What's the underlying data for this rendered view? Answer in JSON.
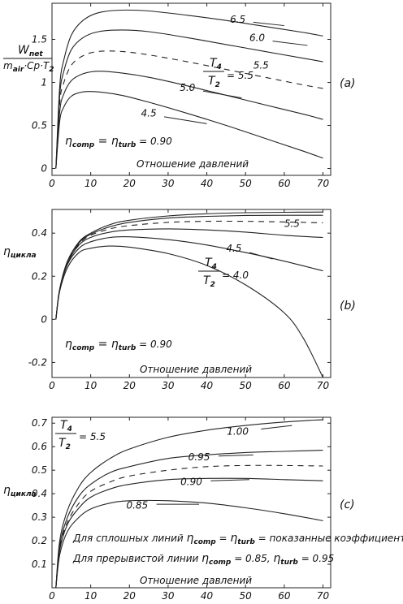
{
  "chart_data": [
    {
      "panel_label": "(a)",
      "type": "line",
      "xlim": [
        0,
        72
      ],
      "ylim": [
        -0.08,
        1.92
      ],
      "xticks": [
        "0",
        "10",
        "20",
        "30",
        "40",
        "50",
        "60",
        "70"
      ],
      "yticks": [
        "0",
        "0.5",
        "1",
        "1.5"
      ],
      "ylabel": {
        "num": "W",
        "num_sub": "net",
        "den": "m",
        "den_sub1": "air",
        "den_mid": "·Cp·T",
        "den_sub2": "2"
      },
      "xlabel": "Отношение давлений",
      "ratio_label": {
        "num": "T",
        "num_sub": "4",
        "den": "T",
        "den_sub": "2",
        "value": "= 5.5"
      },
      "eta_label": {
        "eta1": "η",
        "sub1": "comp",
        "mid": " = ",
        "eta2": "η",
        "sub2": "turb",
        "value": " = 0.90"
      },
      "series": [
        {
          "name": "6.5",
          "dashed": false,
          "points": [
            [
              1,
              0
            ],
            [
              2,
              0.95
            ],
            [
              3,
              1.25
            ],
            [
              5,
              1.55
            ],
            [
              8,
              1.72
            ],
            [
              12,
              1.81
            ],
            [
              18,
              1.84
            ],
            [
              25,
              1.83
            ],
            [
              35,
              1.78
            ],
            [
              45,
              1.72
            ],
            [
              55,
              1.65
            ],
            [
              65,
              1.58
            ],
            [
              70,
              1.54
            ]
          ]
        },
        {
          "name": "6.0",
          "dashed": false,
          "points": [
            [
              1,
              0
            ],
            [
              2,
              0.85
            ],
            [
              3,
              1.12
            ],
            [
              5,
              1.38
            ],
            [
              8,
              1.52
            ],
            [
              12,
              1.59
            ],
            [
              18,
              1.61
            ],
            [
              25,
              1.59
            ],
            [
              35,
              1.52
            ],
            [
              45,
              1.44
            ],
            [
              55,
              1.36
            ],
            [
              65,
              1.28
            ],
            [
              70,
              1.24
            ]
          ]
        },
        {
          "name": "5.5",
          "dashed": true,
          "points": [
            [
              1,
              0
            ],
            [
              2,
              0.76
            ],
            [
              3,
              0.99
            ],
            [
              5,
              1.2
            ],
            [
              8,
              1.31
            ],
            [
              12,
              1.36
            ],
            [
              18,
              1.36
            ],
            [
              25,
              1.32
            ],
            [
              35,
              1.24
            ],
            [
              45,
              1.15
            ],
            [
              55,
              1.06
            ],
            [
              65,
              0.97
            ],
            [
              70,
              0.93
            ]
          ]
        },
        {
          "name": "5.0",
          "dashed": false,
          "points": [
            [
              1,
              0
            ],
            [
              2,
              0.66
            ],
            [
              3,
              0.86
            ],
            [
              5,
              1.02
            ],
            [
              8,
              1.1
            ],
            [
              12,
              1.13
            ],
            [
              18,
              1.11
            ],
            [
              25,
              1.06
            ],
            [
              35,
              0.96
            ],
            [
              45,
              0.85
            ],
            [
              55,
              0.74
            ],
            [
              65,
              0.63
            ],
            [
              70,
              0.57
            ]
          ]
        },
        {
          "name": "4.5",
          "dashed": false,
          "points": [
            [
              1,
              0
            ],
            [
              2,
              0.55
            ],
            [
              3,
              0.71
            ],
            [
              5,
              0.84
            ],
            [
              8,
              0.89
            ],
            [
              12,
              0.89
            ],
            [
              18,
              0.85
            ],
            [
              25,
              0.77
            ],
            [
              35,
              0.64
            ],
            [
              45,
              0.5
            ],
            [
              55,
              0.35
            ],
            [
              65,
              0.2
            ],
            [
              70,
              0.12
            ]
          ]
        }
      ]
    },
    {
      "panel_label": "(b)",
      "type": "line",
      "xlim": [
        0,
        72
      ],
      "ylim": [
        -0.27,
        0.51
      ],
      "xticks": [
        "0",
        "10",
        "20",
        "30",
        "40",
        "50",
        "60",
        "70"
      ],
      "yticks": [
        "-0.2",
        "0",
        "0.2",
        "0.4"
      ],
      "ylabel": {
        "eta": "η",
        "sub": "цикла"
      },
      "xlabel": "Отношение давлений",
      "ratio_label": {
        "num": "T",
        "num_sub": "4",
        "den": "T",
        "den_sub": "2",
        "value": "= 4.0"
      },
      "eta_label": {
        "eta1": "η",
        "sub1": "comp",
        "mid": " = ",
        "eta2": "η",
        "sub2": "turb",
        "value": " = 0.90"
      },
      "series": [
        {
          "name": "",
          "dashed": false,
          "points": [
            [
              1,
              0
            ],
            [
              2,
              0.14
            ],
            [
              4,
              0.27
            ],
            [
              7,
              0.36
            ],
            [
              10,
              0.4
            ],
            [
              15,
              0.44
            ],
            [
              20,
              0.46
            ],
            [
              30,
              0.48
            ],
            [
              40,
              0.49
            ],
            [
              50,
              0.495
            ],
            [
              60,
              0.497
            ],
            [
              70,
              0.498
            ]
          ]
        },
        {
          "name": "",
          "dashed": false,
          "points": [
            [
              1,
              0
            ],
            [
              2,
              0.14
            ],
            [
              4,
              0.27
            ],
            [
              7,
              0.355
            ],
            [
              10,
              0.395
            ],
            [
              15,
              0.43
            ],
            [
              20,
              0.45
            ],
            [
              30,
              0.47
            ],
            [
              40,
              0.478
            ],
            [
              50,
              0.482
            ],
            [
              60,
              0.483
            ],
            [
              70,
              0.483
            ]
          ]
        },
        {
          "name": "5.5",
          "dashed": true,
          "points": [
            [
              1,
              0
            ],
            [
              2,
              0.14
            ],
            [
              4,
              0.265
            ],
            [
              7,
              0.35
            ],
            [
              10,
              0.39
            ],
            [
              15,
              0.42
            ],
            [
              20,
              0.435
            ],
            [
              30,
              0.45
            ],
            [
              40,
              0.455
            ],
            [
              50,
              0.455
            ],
            [
              60,
              0.452
            ],
            [
              70,
              0.448
            ]
          ]
        },
        {
          "name": "",
          "dashed": false,
          "points": [
            [
              1,
              0
            ],
            [
              2,
              0.14
            ],
            [
              4,
              0.26
            ],
            [
              7,
              0.345
            ],
            [
              10,
              0.38
            ],
            [
              15,
              0.405
            ],
            [
              20,
              0.415
            ],
            [
              30,
              0.42
            ],
            [
              40,
              0.415
            ],
            [
              50,
              0.405
            ],
            [
              60,
              0.39
            ],
            [
              70,
              0.38
            ]
          ]
        },
        {
          "name": "4.5",
          "dashed": false,
          "points": [
            [
              1,
              0
            ],
            [
              2,
              0.135
            ],
            [
              4,
              0.255
            ],
            [
              7,
              0.33
            ],
            [
              10,
              0.36
            ],
            [
              15,
              0.38
            ],
            [
              20,
              0.383
            ],
            [
              30,
              0.37
            ],
            [
              40,
              0.345
            ],
            [
              50,
              0.31
            ],
            [
              60,
              0.27
            ],
            [
              70,
              0.225
            ]
          ]
        },
        {
          "name": "",
          "dashed": false,
          "points": [
            [
              1,
              0
            ],
            [
              2,
              0.13
            ],
            [
              4,
              0.24
            ],
            [
              7,
              0.31
            ],
            [
              10,
              0.33
            ],
            [
              15,
              0.34
            ],
            [
              20,
              0.335
            ],
            [
              30,
              0.305
            ],
            [
              40,
              0.25
            ],
            [
              50,
              0.16
            ],
            [
              60,
              0.03
            ],
            [
              65,
              -0.09
            ],
            [
              70,
              -0.27
            ]
          ]
        }
      ]
    },
    {
      "panel_label": "(c)",
      "type": "line",
      "xlim": [
        0,
        72
      ],
      "ylim": [
        0,
        0.725
      ],
      "xticks": [
        "0",
        "10",
        "20",
        "30",
        "40",
        "50",
        "60",
        "70"
      ],
      "yticks": [
        "0.1",
        "0.2",
        "0.3",
        "0.4",
        "0.5",
        "0.6",
        "0.7"
      ],
      "ylabel": {
        "eta": "η",
        "sub": "цикла"
      },
      "xlabel": "Отношение давлений",
      "ratio_label": {
        "num": "T",
        "num_sub": "4",
        "den": "T",
        "den_sub": "2",
        "value": "= 5.5"
      },
      "note1": {
        "text": "Для сплошных линий ",
        "eta1": "η",
        "sub1": "comp",
        "mid": " = ",
        "eta2": "η",
        "sub2": "turb",
        "tail": " = показанные коэффициенты"
      },
      "note2": {
        "text": "Для прерывистой линии ",
        "eta1": "η",
        "sub1": "comp",
        "mid": " = 0.85, ",
        "eta2": "η",
        "sub2": "turb",
        "tail": " = 0.95"
      },
      "series": [
        {
          "name": "1.00",
          "dashed": false,
          "points": [
            [
              1,
              0
            ],
            [
              2,
              0.2
            ],
            [
              4,
              0.33
            ],
            [
              7,
              0.43
            ],
            [
              10,
              0.49
            ],
            [
              15,
              0.55
            ],
            [
              20,
              0.59
            ],
            [
              30,
              0.64
            ],
            [
              40,
              0.67
            ],
            [
              50,
              0.69
            ],
            [
              60,
              0.705
            ],
            [
              70,
              0.715
            ]
          ]
        },
        {
          "name": "0.95",
          "dashed": false,
          "points": [
            [
              1,
              0
            ],
            [
              2,
              0.18
            ],
            [
              4,
              0.3
            ],
            [
              7,
              0.39
            ],
            [
              10,
              0.44
            ],
            [
              15,
              0.49
            ],
            [
              20,
              0.515
            ],
            [
              30,
              0.55
            ],
            [
              40,
              0.565
            ],
            [
              50,
              0.575
            ],
            [
              60,
              0.58
            ],
            [
              70,
              0.585
            ]
          ]
        },
        {
          "name": "",
          "dashed": true,
          "points": [
            [
              1,
              0
            ],
            [
              2,
              0.17
            ],
            [
              4,
              0.28
            ],
            [
              7,
              0.36
            ],
            [
              10,
              0.41
            ],
            [
              15,
              0.45
            ],
            [
              20,
              0.475
            ],
            [
              30,
              0.5
            ],
            [
              40,
              0.515
            ],
            [
              50,
              0.52
            ],
            [
              60,
              0.52
            ],
            [
              70,
              0.518
            ]
          ]
        },
        {
          "name": "0.90",
          "dashed": false,
          "points": [
            [
              1,
              0
            ],
            [
              2,
              0.16
            ],
            [
              4,
              0.27
            ],
            [
              7,
              0.34
            ],
            [
              10,
              0.385
            ],
            [
              15,
              0.42
            ],
            [
              20,
              0.44
            ],
            [
              30,
              0.46
            ],
            [
              40,
              0.465
            ],
            [
              50,
              0.465
            ],
            [
              60,
              0.46
            ],
            [
              70,
              0.455
            ]
          ]
        },
        {
          "name": "0.85",
          "dashed": false,
          "points": [
            [
              1,
              0
            ],
            [
              2,
              0.14
            ],
            [
              4,
              0.24
            ],
            [
              7,
              0.3
            ],
            [
              10,
              0.335
            ],
            [
              15,
              0.36
            ],
            [
              20,
              0.37
            ],
            [
              30,
              0.37
            ],
            [
              40,
              0.36
            ],
            [
              50,
              0.34
            ],
            [
              60,
              0.315
            ],
            [
              70,
              0.285
            ]
          ]
        }
      ]
    }
  ]
}
